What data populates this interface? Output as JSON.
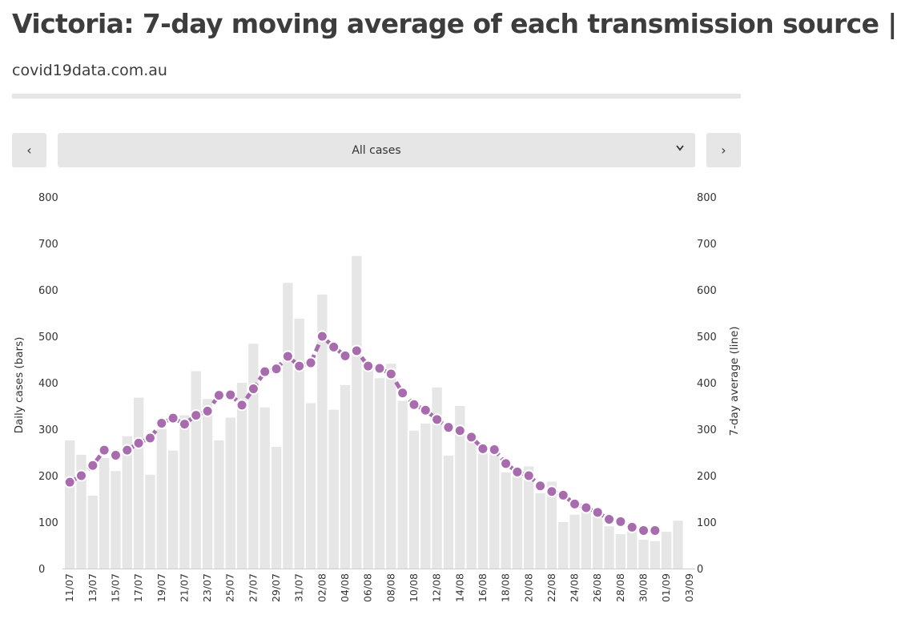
{
  "header": {
    "title": "Victoria: 7-day moving average of each transmission source |",
    "subtitle": "covid19data.com.au"
  },
  "controls": {
    "prev_label": "‹",
    "next_label": "›",
    "select_value": "All cases",
    "chevron_icon": "chevron-down-icon"
  },
  "colors": {
    "bars": "#e6e6e6",
    "line": "#a86cae",
    "axis_text": "#333333"
  },
  "chart_data": {
    "type": "bar",
    "ylabel_left": "Daily cases (bars)",
    "ylabel_right": "7-day average (line)",
    "ylim": [
      0,
      800
    ],
    "yticks": [
      0,
      100,
      200,
      300,
      400,
      500,
      600,
      700,
      800
    ],
    "x_tick_labels": [
      "11/07",
      "13/07",
      "15/07",
      "17/07",
      "19/07",
      "21/07",
      "23/07",
      "25/07",
      "27/07",
      "29/07",
      "31/07",
      "02/08",
      "04/08",
      "06/08",
      "08/08",
      "10/08",
      "12/08",
      "14/08",
      "16/08",
      "18/08",
      "20/08",
      "22/08",
      "24/08",
      "26/08",
      "28/08",
      "30/08",
      "01/09",
      "03/09"
    ],
    "categories": [
      "11/07",
      "12/07",
      "13/07",
      "14/07",
      "15/07",
      "16/07",
      "17/07",
      "18/07",
      "19/07",
      "20/07",
      "21/07",
      "22/07",
      "23/07",
      "24/07",
      "25/07",
      "26/07",
      "27/07",
      "28/07",
      "29/07",
      "30/07",
      "31/07",
      "01/08",
      "02/08",
      "03/08",
      "04/08",
      "05/08",
      "06/08",
      "07/08",
      "08/08",
      "09/08",
      "10/08",
      "11/08",
      "12/08",
      "13/08",
      "14/08",
      "15/08",
      "16/08",
      "17/08",
      "18/08",
      "19/08",
      "20/08",
      "21/08",
      "22/08",
      "23/08",
      "24/08",
      "25/08",
      "26/08",
      "27/08",
      "28/08",
      "29/08",
      "30/08",
      "31/08",
      "01/09",
      "02/09",
      "03/09"
    ],
    "series": [
      {
        "name": "Daily cases (bars)",
        "type": "bar",
        "values": [
          276,
          245,
          157,
          238,
          210,
          285,
          368,
          202,
          300,
          254,
          330,
          425,
          365,
          276,
          325,
          400,
          484,
          347,
          262,
          615,
          538,
          356,
          590,
          342,
          395,
          673,
          430,
          410,
          441,
          361,
          297,
          312,
          390,
          243,
          350,
          280,
          248,
          260,
          207,
          203,
          220,
          162,
          187,
          100,
          116,
          134,
          111,
          91,
          74,
          97,
          62,
          59,
          79,
          103,
          0
        ]
      },
      {
        "name": "7-day average (line)",
        "type": "line",
        "values": [
          186,
          200,
          222,
          255,
          244,
          255,
          270,
          281,
          313,
          324,
          311,
          330,
          339,
          373,
          374,
          352,
          387,
          424,
          430,
          457,
          436,
          443,
          500,
          477,
          458,
          469,
          436,
          431,
          419,
          378,
          353,
          341,
          321,
          304,
          297,
          283,
          258,
          256,
          226,
          208,
          200,
          178,
          166,
          158,
          139,
          131,
          121,
          106,
          101,
          89,
          82,
          82,
          null,
          null,
          null
        ]
      }
    ]
  }
}
